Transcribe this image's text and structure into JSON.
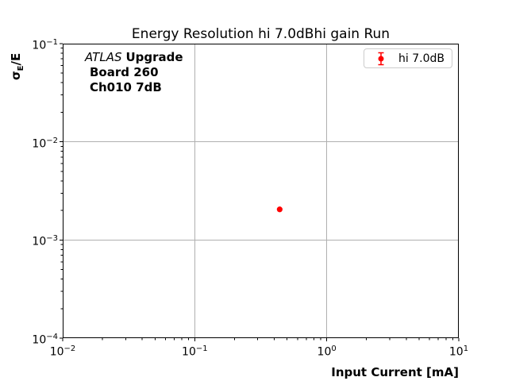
{
  "figure": {
    "title": "Energy Resolution hi 7.0dBhi gain Run"
  },
  "axes": {
    "xlabel": "Input Current [mA]",
    "ylabel_sigma": "σ",
    "ylabel_sub": "E",
    "ylabel_rest": "/E"
  },
  "annotation": {
    "line1_italic": "ATLAS",
    "line1_bold": "Upgrade",
    "line2": "Board 260",
    "line3": "Ch010 7dB"
  },
  "legend": {
    "label": "hi 7.0dB"
  },
  "colors": {
    "marker": "#ff0000",
    "grid": "#b0b0b0",
    "spine": "#000000",
    "legend_border": "#cccccc",
    "text": "#000000"
  },
  "chart_data": {
    "type": "scatter",
    "title": "Energy Resolution hi 7.0dBhi gain Run",
    "xlabel": "Input Current [mA]",
    "ylabel": "σ_E/E",
    "xscale": "log",
    "yscale": "log",
    "xlim": [
      0.01,
      10
    ],
    "ylim": [
      0.0001,
      0.1
    ],
    "grid": true,
    "legend_position": "upper right",
    "x_ticks": [
      {
        "value": 0.01,
        "label": "10^−2"
      },
      {
        "value": 0.1,
        "label": "10^−1"
      },
      {
        "value": 1,
        "label": "10^0"
      },
      {
        "value": 10,
        "label": "10^1"
      }
    ],
    "y_ticks": [
      {
        "value": 0.1,
        "label": "10^−1"
      },
      {
        "value": 0.01,
        "label": "10^−2"
      },
      {
        "value": 0.001,
        "label": "10^−3"
      },
      {
        "value": 0.0001,
        "label": "10^−4"
      }
    ],
    "series": [
      {
        "name": "hi 7.0dB",
        "color": "#ff0000",
        "marker": "circle",
        "points": [
          {
            "x": 0.44,
            "y": 0.00205,
            "yerr": 0.0001
          }
        ]
      }
    ],
    "annotation_lines": [
      "ATLAS Upgrade",
      "Board 260",
      "Ch010 7dB"
    ]
  }
}
